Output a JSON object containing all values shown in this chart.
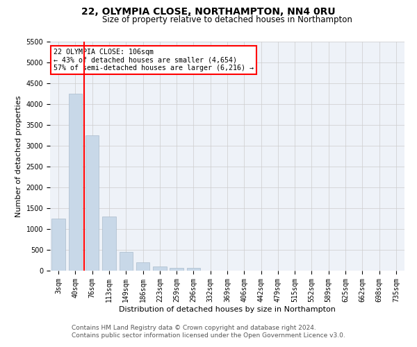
{
  "title1": "22, OLYMPIA CLOSE, NORTHAMPTON, NN4 0RU",
  "title2": "Size of property relative to detached houses in Northampton",
  "xlabel": "Distribution of detached houses by size in Northampton",
  "ylabel": "Number of detached properties",
  "categories": [
    "3sqm",
    "40sqm",
    "76sqm",
    "113sqm",
    "149sqm",
    "186sqm",
    "223sqm",
    "259sqm",
    "296sqm",
    "332sqm",
    "369sqm",
    "406sqm",
    "442sqm",
    "479sqm",
    "515sqm",
    "552sqm",
    "589sqm",
    "625sqm",
    "662sqm",
    "698sqm",
    "735sqm"
  ],
  "values": [
    1250,
    4250,
    3250,
    1300,
    450,
    200,
    100,
    75,
    60,
    0,
    0,
    0,
    0,
    0,
    0,
    0,
    0,
    0,
    0,
    0,
    0
  ],
  "bar_color": "#c8d8e8",
  "bar_edge_color": "#aabbcc",
  "grid_color": "#cccccc",
  "bg_color": "#eef2f8",
  "annotation_text": "22 OLYMPIA CLOSE: 106sqm\n← 43% of detached houses are smaller (4,654)\n57% of semi-detached houses are larger (6,216) →",
  "ylim": [
    0,
    5500
  ],
  "yticks": [
    0,
    500,
    1000,
    1500,
    2000,
    2500,
    3000,
    3500,
    4000,
    4500,
    5000,
    5500
  ],
  "footer1": "Contains HM Land Registry data © Crown copyright and database right 2024.",
  "footer2": "Contains public sector information licensed under the Open Government Licence v3.0.",
  "title1_fontsize": 10,
  "title2_fontsize": 8.5,
  "xlabel_fontsize": 8,
  "ylabel_fontsize": 8,
  "tick_fontsize": 7,
  "footer_fontsize": 6.5,
  "red_line_x": 1.5
}
